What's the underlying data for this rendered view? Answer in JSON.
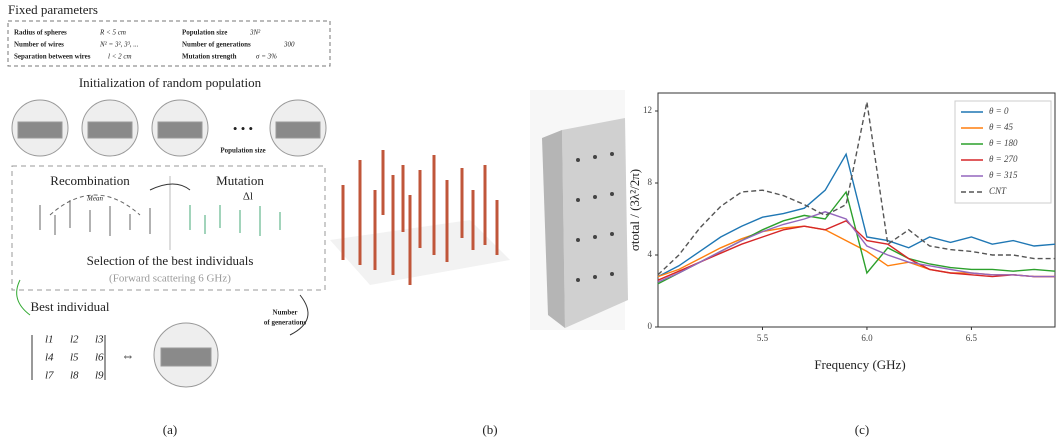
{
  "panel_a": {
    "title": "Fixed parameters",
    "params": [
      {
        "name": "Radius of spheres",
        "value": "R < 5 cm"
      },
      {
        "name": "Number of wires",
        "value": "N² = 3², 3³, ..."
      },
      {
        "name": "Separation between wires",
        "value": "l < 2 cm"
      },
      {
        "name": "Population size",
        "value": "3N²"
      },
      {
        "name": "Number of generations",
        "value": "300"
      },
      {
        "name": "Mutation strength",
        "value": "σ = 3%"
      }
    ],
    "init": "Initialization of random population",
    "dots": "• • •",
    "population_size": "Population size",
    "recombination": "Recombination",
    "mutation": "Mutation",
    "delta": "Δl",
    "mean": "Mean",
    "selection": "Selection of the best individuals",
    "forward": "(Forward scattering 6 GHz)",
    "best": "Best individual",
    "generations": [
      "Number",
      "of generations"
    ],
    "matrix": [
      "l1",
      "l2",
      "l3",
      "l4",
      "l5",
      "l6",
      "l7",
      "l8",
      "l9"
    ],
    "equiv": "⇔"
  },
  "captions": [
    "(a)",
    "(b)",
    "(c)"
  ],
  "chart_data": {
    "type": "line",
    "xlabel": "Frequency (GHz)",
    "ylabel": "σtotal / (3λ²/2π)",
    "x": [
      5.0,
      5.1,
      5.2,
      5.3,
      5.4,
      5.5,
      5.6,
      5.7,
      5.8,
      5.9,
      6.0,
      6.1,
      6.2,
      6.3,
      6.4,
      6.5,
      6.6,
      6.7,
      6.8,
      6.9
    ],
    "xlim": [
      5.0,
      6.9
    ],
    "xticks": [
      5.5,
      {
        "value": 6,
        "label": "6.0"
      },
      6.5
    ],
    "ylim": [
      0,
      13
    ],
    "yticks": [
      0,
      4,
      8,
      12
    ],
    "legend": "upper right",
    "series": [
      {
        "name": "θ = 0",
        "color": "#1f77b4",
        "values": [
          2.8,
          3.4,
          4.2,
          5.0,
          5.6,
          6.1,
          6.3,
          6.6,
          7.6,
          9.6,
          5.0,
          4.8,
          4.4,
          5.0,
          4.7,
          5.0,
          4.6,
          4.8,
          4.5,
          4.6
        ]
      },
      {
        "name": "θ = 45",
        "color": "#ff7f0e",
        "values": [
          2.8,
          3.2,
          3.8,
          4.4,
          4.9,
          5.3,
          5.5,
          5.6,
          5.4,
          4.8,
          4.2,
          3.4,
          3.6,
          3.2,
          3.0,
          3.0,
          2.9,
          2.9,
          2.8,
          2.8
        ]
      },
      {
        "name": "θ = 180",
        "color": "#2ca02c",
        "values": [
          2.4,
          3.0,
          3.6,
          4.2,
          4.8,
          5.4,
          5.9,
          6.2,
          6.0,
          7.5,
          3.0,
          4.4,
          3.8,
          3.5,
          3.3,
          3.2,
          3.2,
          3.1,
          3.2,
          3.1
        ]
      },
      {
        "name": "θ = 270",
        "color": "#d62728",
        "values": [
          2.6,
          3.1,
          3.6,
          4.1,
          4.6,
          5.0,
          5.4,
          5.6,
          5.4,
          5.9,
          4.8,
          4.6,
          3.8,
          3.2,
          3.0,
          2.9,
          2.8,
          2.9,
          2.8,
          2.8
        ]
      },
      {
        "name": "θ = 315",
        "color": "#9467bd",
        "values": [
          2.5,
          3.0,
          3.6,
          4.2,
          4.8,
          5.3,
          5.7,
          6.0,
          6.4,
          6.0,
          4.5,
          4.0,
          3.6,
          3.4,
          3.2,
          3.0,
          2.9,
          2.9,
          2.8,
          2.8
        ]
      },
      {
        "name": "CNT",
        "color": "#555555",
        "dashed": true,
        "values": [
          2.9,
          4.0,
          5.5,
          6.7,
          7.5,
          7.6,
          7.3,
          6.8,
          6.2,
          6.8,
          12.5,
          4.6,
          5.4,
          4.5,
          4.3,
          4.2,
          4.0,
          4.0,
          3.8,
          3.8
        ]
      }
    ]
  }
}
